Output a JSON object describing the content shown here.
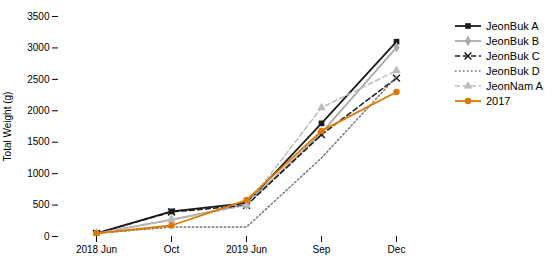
{
  "chart_data": {
    "type": "line",
    "categories": [
      "2018 Jun",
      "Oct",
      "2019 Jun",
      "Sep",
      "Dec"
    ],
    "series": [
      {
        "name": "JeonBuk A",
        "color": "#1a1a1a",
        "values": [
          50,
          400,
          530,
          1800,
          3100
        ],
        "marker": "square",
        "line_style": "solid"
      },
      {
        "name": "JeonBuk B",
        "color": "#aaaaaa",
        "values": [
          50,
          270,
          510,
          1650,
          3010
        ],
        "marker": "diamond",
        "line_style": "solid"
      },
      {
        "name": "JeonBuk C",
        "color": "#1a1a1a",
        "values": [
          50,
          390,
          495,
          1620,
          2520
        ],
        "marker": "x",
        "line_style": "dashed"
      },
      {
        "name": "JeonBuk D",
        "color": "#777777",
        "values": [
          50,
          150,
          150,
          1250,
          2540
        ],
        "line_style": "dotted"
      },
      {
        "name": "JeonNam A",
        "color": "#bbbbbb",
        "values": [
          50,
          260,
          495,
          2050,
          2640
        ],
        "marker": "triangle",
        "line_style": "dashed"
      },
      {
        "name": "2017",
        "color": "#e07800",
        "values": [
          50,
          175,
          580,
          1680,
          2300
        ],
        "marker": "circle",
        "line_style": "solid"
      }
    ],
    "ylabel": "Total Weight (g)",
    "ylim": [
      0,
      3500
    ],
    "yticks": [
      0,
      500,
      1000,
      1500,
      2000,
      2500,
      3000,
      3500
    ],
    "grid": false,
    "legend": "upper right"
  }
}
